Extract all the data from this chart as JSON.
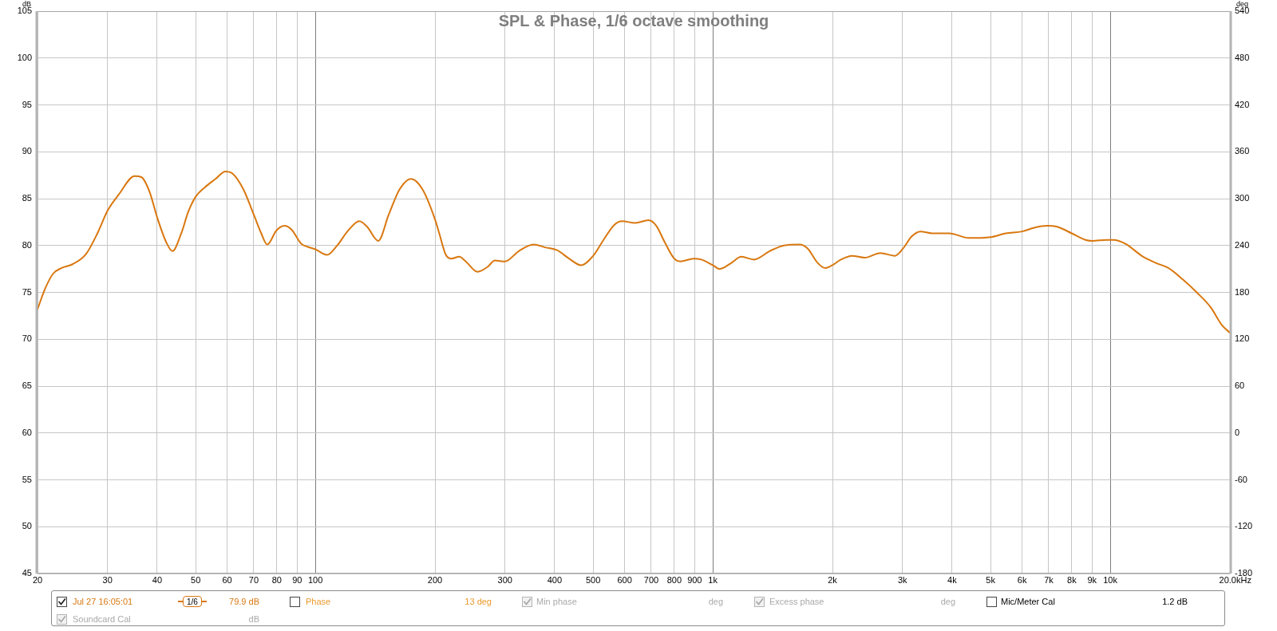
{
  "chart_data": {
    "type": "line",
    "title": "SPL & Phase, 1/6 octave smoothing",
    "xlabel": "Hz",
    "ylabel": "dB",
    "y2label": "deg",
    "log": "x",
    "grid": true,
    "legend": "bottom",
    "x": [
      20,
      20.9,
      21.9,
      23,
      24.5,
      26.5,
      28.3,
      30,
      32.1,
      35.1,
      36.5,
      38.3,
      40,
      42.1,
      43.7,
      46,
      47.9,
      50,
      52.7,
      56.1,
      59.4,
      61.8,
      65.9,
      70,
      73.1,
      75.7,
      79.8,
      83.6,
      87.1,
      92.1,
      95,
      100,
      107,
      113,
      121,
      129,
      135,
      144,
      153,
      163,
      174,
      186,
      200,
      205,
      213,
      220,
      230,
      239,
      256,
      271,
      283,
      300,
      325,
      354,
      379,
      406,
      435,
      466,
      500,
      531,
      565,
      591,
      638,
      689,
      721,
      756,
      800,
      828,
      894,
      936,
      1000,
      1040,
      1110,
      1180,
      1270,
      1390,
      1510,
      1650,
      1730,
      1840,
      1920,
      2000,
      2100,
      2240,
      2410,
      2640,
      2870,
      3000,
      3170,
      3330,
      3560,
      3930,
      4410,
      5000,
      5460,
      6000,
      6440,
      6930,
      7350,
      8000,
      8660,
      9000,
      9800,
      10200,
      10900,
      12100,
      13100,
      14000,
      15200,
      16500,
      17900,
      19100,
      20000
    ],
    "series": [
      {
        "name": "Jul 27 16:05:01",
        "color": "#d9770f",
        "values": [
          73.2,
          75.4,
          77.0,
          77.6,
          78.0,
          79.1,
          81.3,
          83.7,
          85.5,
          87.4,
          87.3,
          85.7,
          83.0,
          80.4,
          79.4,
          81.3,
          83.6,
          85.2,
          86.2,
          87.1,
          87.9,
          87.7,
          86.0,
          83.3,
          81.3,
          80.1,
          81.6,
          82.1,
          81.7,
          80.2,
          79.9,
          79.6,
          79.0,
          79.9,
          81.6,
          82.6,
          82.0,
          80.5,
          83.3,
          86.0,
          87.1,
          86.0,
          82.8,
          81.3,
          79.0,
          78.6,
          78.8,
          78.3,
          77.2,
          77.7,
          78.4,
          78.3,
          79.4,
          80.1,
          79.8,
          79.5,
          78.6,
          77.9,
          78.9,
          80.6,
          82.2,
          82.6,
          82.4,
          82.7,
          82.1,
          80.4,
          78.6,
          78.3,
          78.6,
          78.5,
          77.9,
          77.5,
          78.1,
          78.8,
          78.5,
          79.4,
          80.0,
          80.1,
          79.7,
          78.1,
          77.6,
          77.9,
          78.5,
          78.9,
          78.7,
          79.2,
          78.9,
          79.6,
          81.0,
          81.5,
          81.3,
          81.3,
          80.8,
          80.9,
          81.3,
          81.5,
          81.9,
          82.1,
          82.0,
          81.3,
          80.6,
          80.5,
          80.6,
          80.6,
          80.2,
          78.8,
          78.1,
          77.6,
          76.4,
          75.0,
          73.4,
          71.5,
          70.7
        ]
      }
    ],
    "xlim": [
      20,
      20000
    ],
    "xticks": [
      20,
      30,
      40,
      50,
      60,
      70,
      80,
      90,
      100,
      200,
      300,
      400,
      500,
      600,
      700,
      800,
      900,
      {
        "value": 1000,
        "label": "1k"
      },
      {
        "value": 2000,
        "label": "2k"
      },
      {
        "value": 3000,
        "label": "3k"
      },
      {
        "value": 4000,
        "label": "4k"
      },
      {
        "value": 5000,
        "label": "5k"
      },
      {
        "value": 6000,
        "label": "6k"
      },
      {
        "value": 7000,
        "label": "7k"
      },
      {
        "value": 8000,
        "label": "8k"
      },
      {
        "value": 9000,
        "label": "9k"
      },
      {
        "value": 10000,
        "label": "10k"
      },
      {
        "value": 20000,
        "label": "20.0k"
      }
    ],
    "ylim": [
      45,
      105
    ],
    "yticks": [
      45,
      50,
      55,
      60,
      65,
      70,
      75,
      80,
      85,
      90,
      95,
      100,
      105
    ],
    "y2lim": [
      -180,
      540
    ],
    "y2ticks": [
      -180,
      -120,
      -60,
      0,
      60,
      120,
      180,
      240,
      300,
      360,
      420,
      480,
      540
    ],
    "annotations": [
      "1/6",
      "79.9 dB",
      "Phase",
      "13 deg",
      "Min phase",
      "deg",
      "Excess phase",
      "deg",
      "Mic/Meter Cal",
      "1.2 dB",
      "Soundcard Cal",
      "dB"
    ]
  }
}
